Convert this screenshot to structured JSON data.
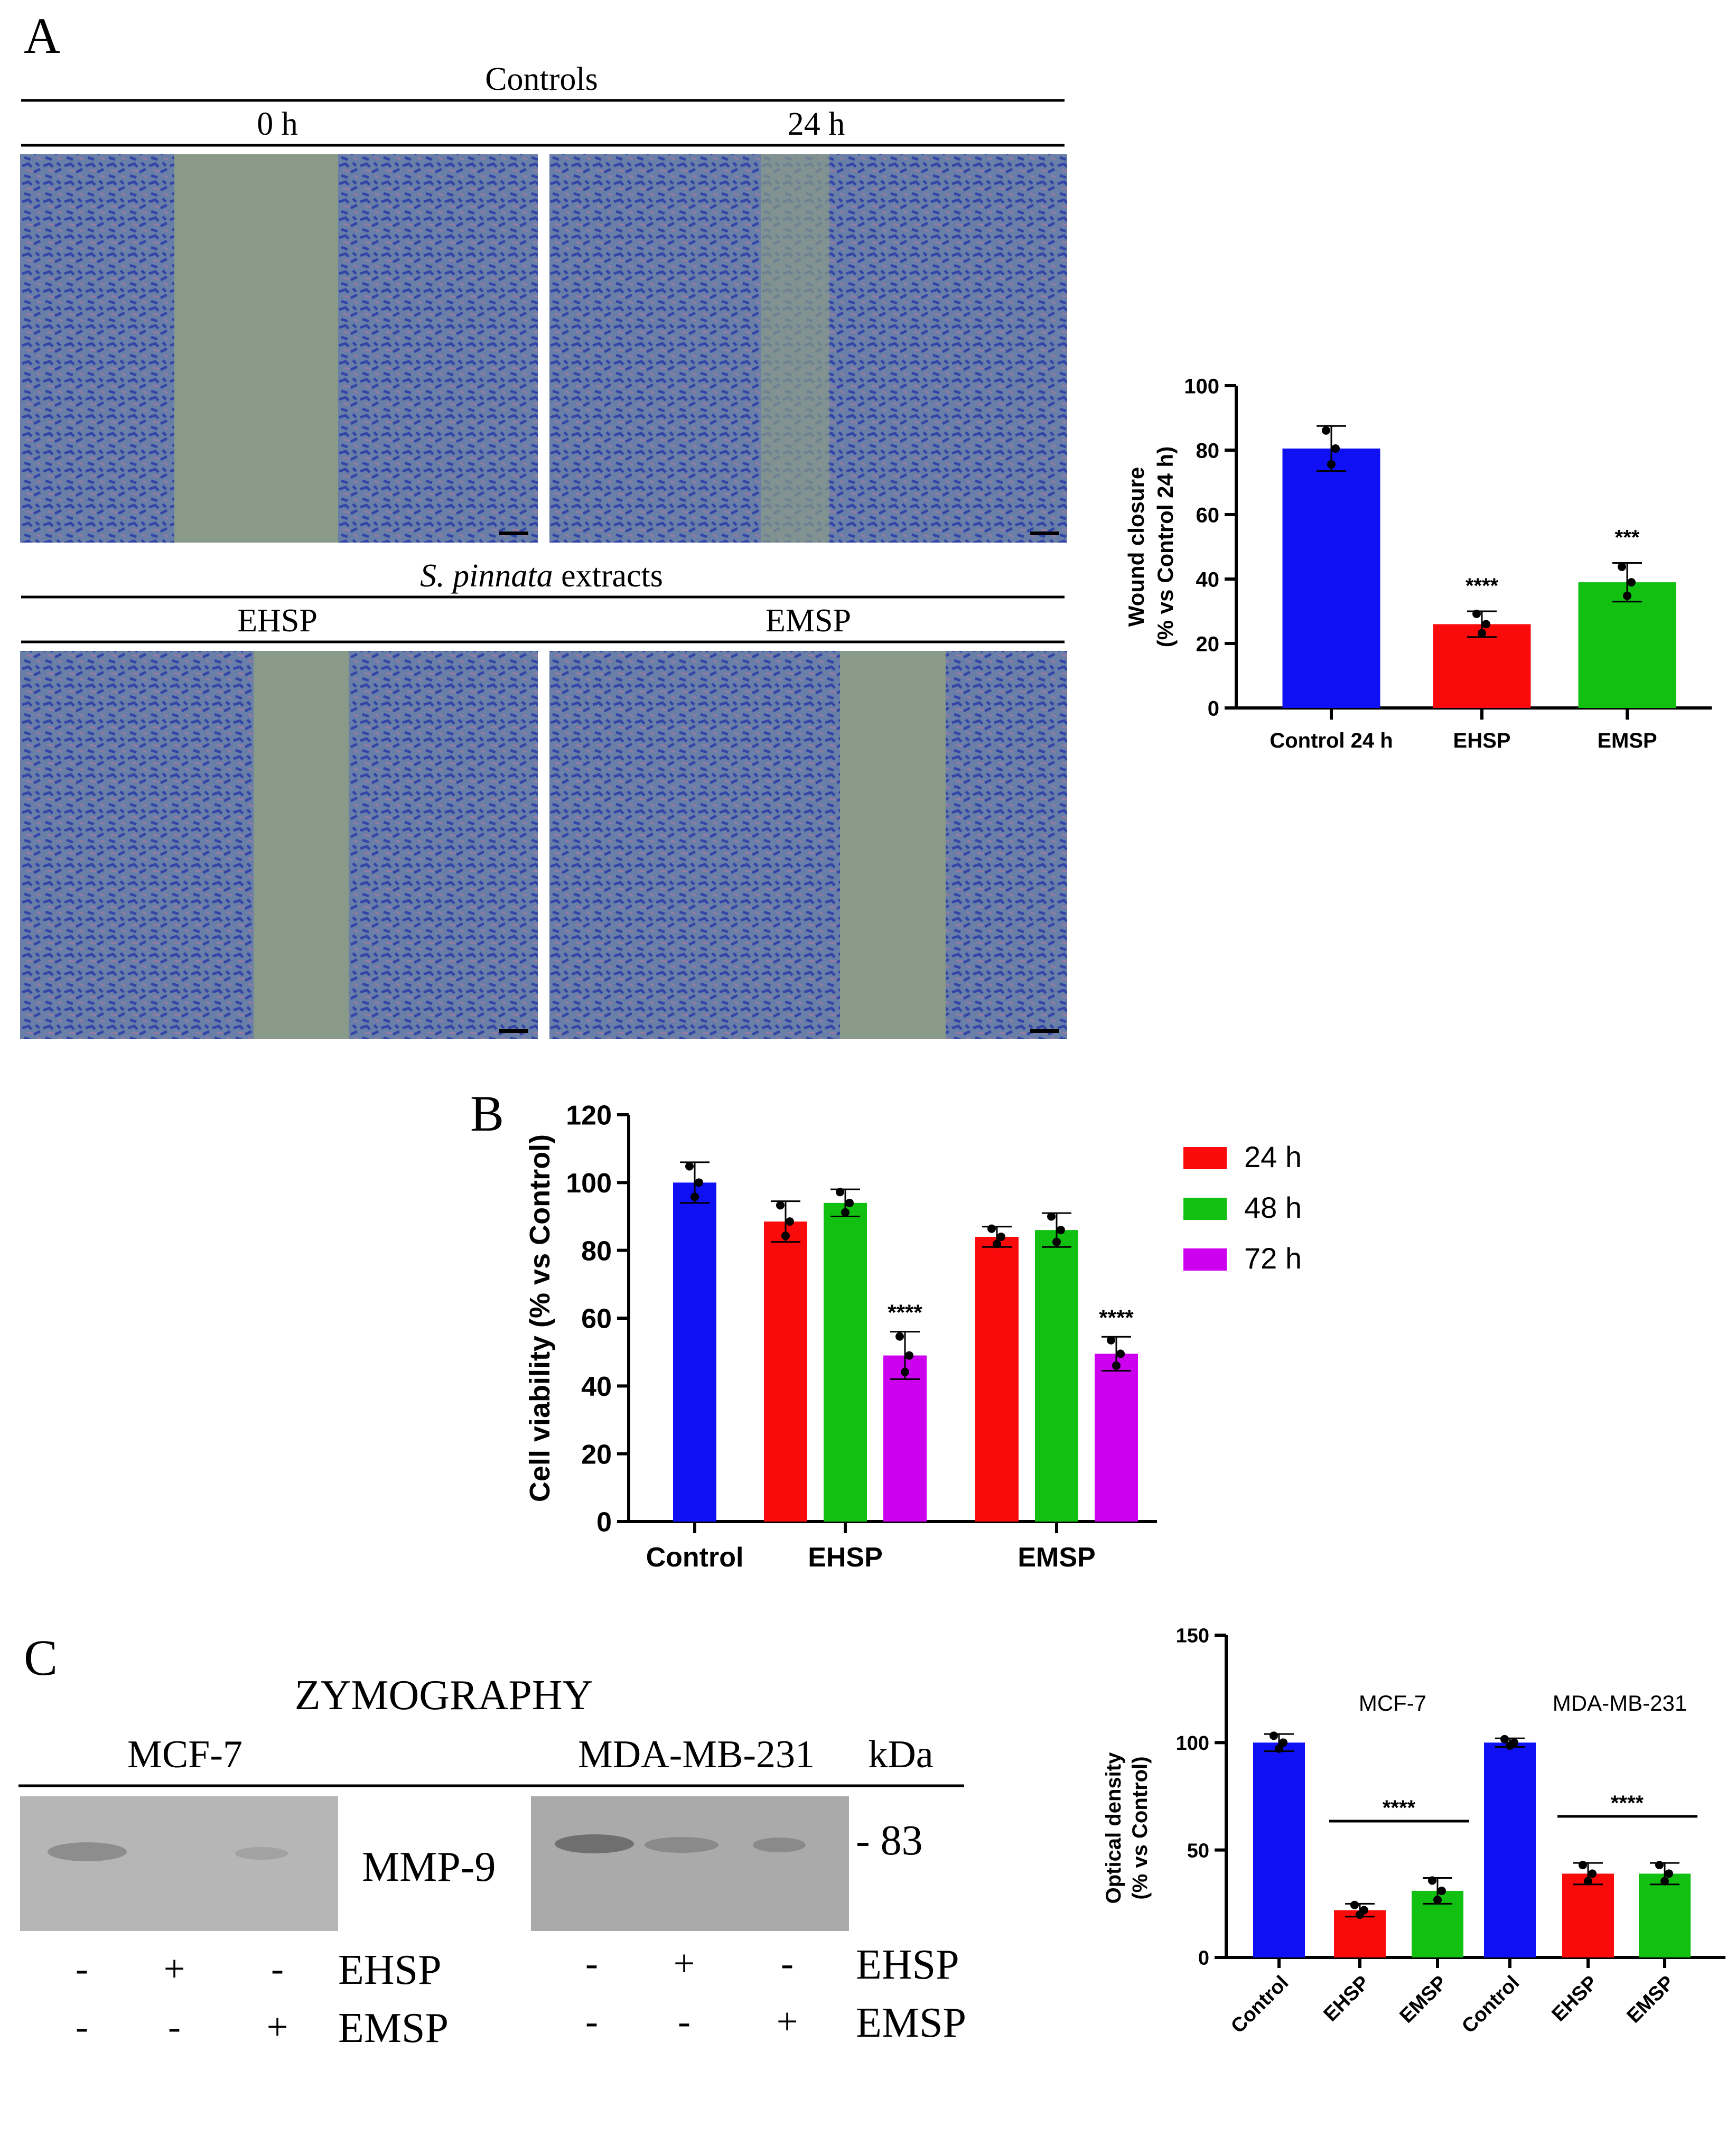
{
  "colors": {
    "blue": "#1010f5",
    "red": "#fa0b0b",
    "green": "#12c012",
    "magenta": "#cc00ee",
    "micro_bg": "#8a9a88",
    "cells": "#3a58b4"
  },
  "panel_a": {
    "letter": "A",
    "controls_header": "Controls",
    "time_0": "0 h",
    "time_24": "24 h",
    "extracts_italic": "S. pinnata",
    "extracts_rest": " extracts",
    "ehsp": "EHSP",
    "emsp": "EMSP"
  },
  "panel_b": {
    "letter": "B"
  },
  "panel_c": {
    "letter": "C",
    "zymography": "ZYMOGRAPHY",
    "mcf7": "MCF-7",
    "mda": "MDA-MB-231",
    "kda": "kDa",
    "mmp9": "MMP-9",
    "marker": "- 83",
    "row1_label": "EHSP",
    "row2_label": "EMSP",
    "row1_signs": [
      "-",
      "+",
      "-"
    ],
    "row2_signs": [
      "-",
      "-",
      "+"
    ]
  },
  "chart_data": [
    {
      "id": "wound",
      "type": "bar",
      "ylabel_line1": "Wound closure",
      "ylabel_line2": "(% vs Control 24 h)",
      "categories": [
        "Control 24 h",
        "EHSP",
        "EMSP"
      ],
      "values": [
        80.5,
        26.0,
        39.0
      ],
      "errors": [
        7,
        4,
        6
      ],
      "significance": [
        "",
        "****",
        "***"
      ],
      "ylim": [
        0,
        100
      ],
      "yticks": [
        0,
        20,
        40,
        60,
        80,
        100
      ]
    },
    {
      "id": "viability",
      "type": "bar",
      "ylabel": "Cell viability (% vs Control)",
      "groups": [
        "Control",
        "EHSP",
        "EMSP"
      ],
      "series": [
        {
          "name": "24 h",
          "values": [
            88.5,
            84.0
          ]
        },
        {
          "name": "48 h",
          "values": [
            94.0,
            86.0
          ]
        },
        {
          "name": "72 h",
          "values": [
            49.0,
            49.5
          ]
        }
      ],
      "control_value": 100,
      "control_error": 6,
      "errors": [
        [
          6,
          3
        ],
        [
          4,
          5
        ],
        [
          7,
          5
        ]
      ],
      "significance_72h": [
        "****",
        "****"
      ],
      "ylim": [
        0,
        120
      ],
      "yticks": [
        0,
        20,
        40,
        60,
        80,
        100,
        120
      ]
    },
    {
      "id": "optical",
      "type": "bar",
      "ylabel_line1": "Optical density",
      "ylabel_line2": "(% vs Control)",
      "categories": [
        "Control",
        "EHSP",
        "EMSP",
        "Control",
        "EHSP",
        "EMSP"
      ],
      "values": [
        100,
        22,
        31,
        100,
        39,
        39
      ],
      "errors": [
        4,
        3,
        6,
        2,
        5,
        5
      ],
      "group_labels": [
        "MCF-7",
        "MDA-MB-231"
      ],
      "significance": [
        "****",
        "****"
      ],
      "ylim": [
        0,
        150
      ],
      "yticks": [
        0,
        50,
        100,
        150
      ]
    }
  ]
}
